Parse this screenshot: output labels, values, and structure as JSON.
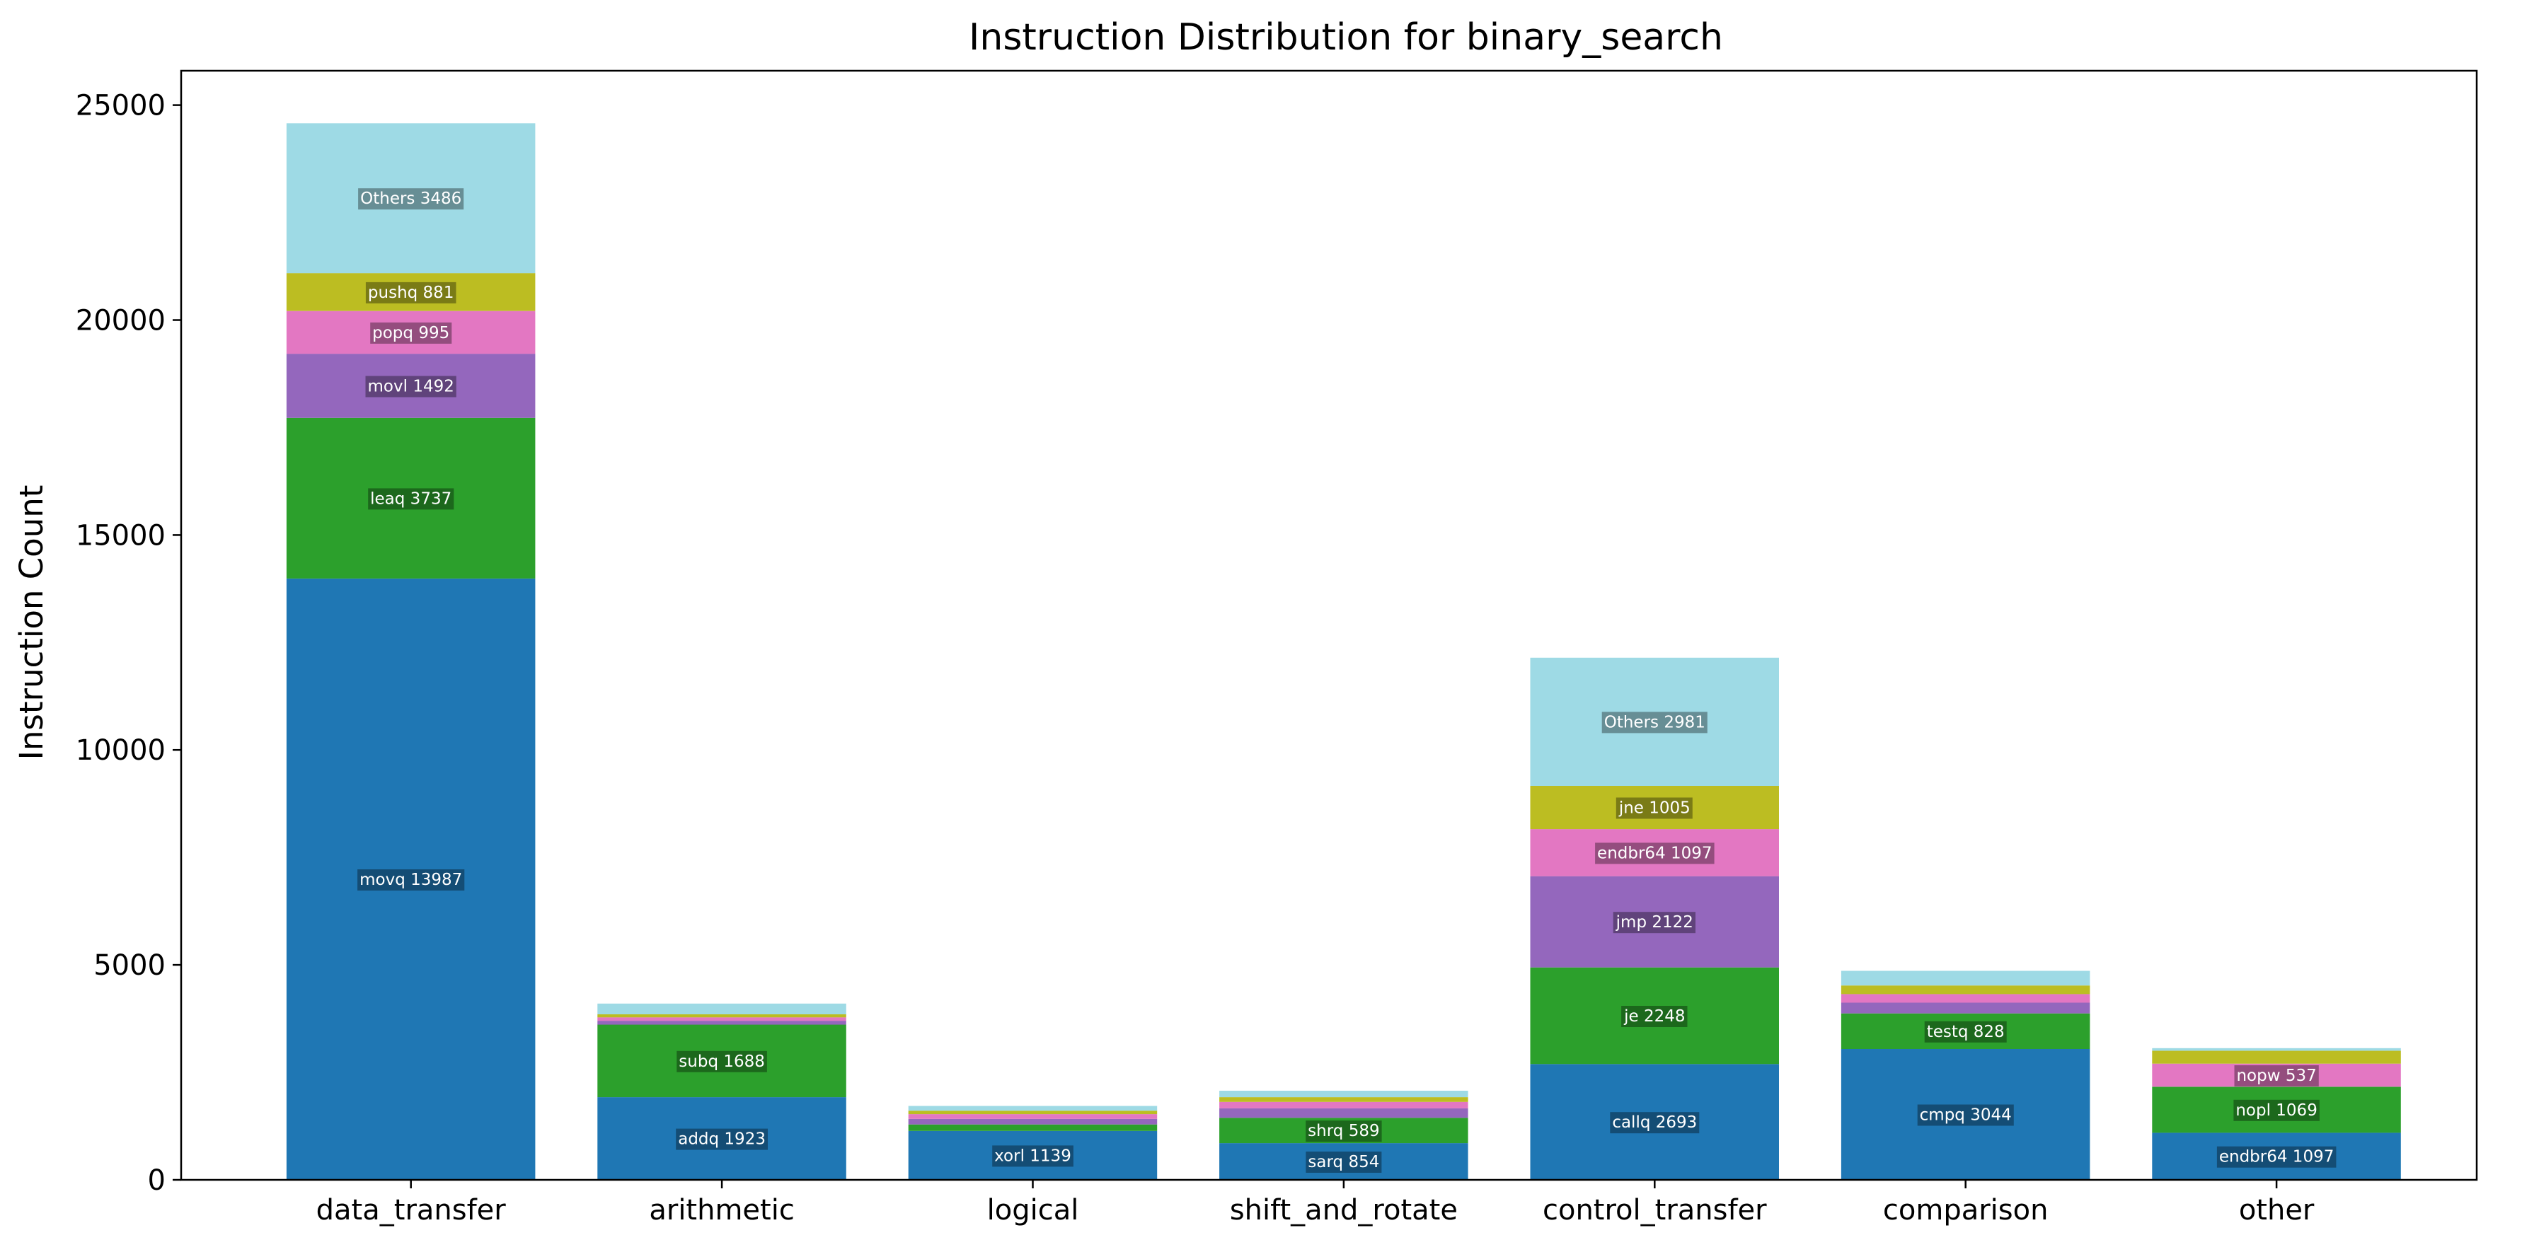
{
  "chart_data": {
    "type": "bar",
    "stacked": true,
    "title": "Instruction Distribution for binary_search",
    "xlabel": "",
    "ylabel": "Instruction Count",
    "ylim": [
      0,
      25800
    ],
    "yticks": [
      0,
      5000,
      10000,
      15000,
      20000,
      25000
    ],
    "grid": false,
    "legend": "none",
    "categories": [
      "data_transfer",
      "arithmetic",
      "logical",
      "shift_and_rotate",
      "control_transfer",
      "comparison",
      "other"
    ],
    "palette": [
      "#1f77b4",
      "#2ca02c",
      "#9467bd",
      "#e377c2",
      "#bcbd22",
      "#9edae5"
    ],
    "stacks": [
      {
        "category": "data_transfer",
        "segments": [
          {
            "label": "movq 13987",
            "value": 13987
          },
          {
            "label": "leaq 3737",
            "value": 3737
          },
          {
            "label": "movl 1492",
            "value": 1492
          },
          {
            "label": "popq 995",
            "value": 995
          },
          {
            "label": "pushq 881",
            "value": 881
          },
          {
            "label": "Others 3486",
            "value": 3486
          }
        ]
      },
      {
        "category": "arithmetic",
        "segments": [
          {
            "label": "addq 1923",
            "value": 1923
          },
          {
            "label": "subq 1688",
            "value": 1688
          },
          {
            "label": "",
            "value": 90
          },
          {
            "label": "",
            "value": 80
          },
          {
            "label": "",
            "value": 70
          },
          {
            "label": "",
            "value": 250
          }
        ]
      },
      {
        "category": "logical",
        "segments": [
          {
            "label": "xorl 1139",
            "value": 1139
          },
          {
            "label": "",
            "value": 150
          },
          {
            "label": "",
            "value": 130
          },
          {
            "label": "",
            "value": 110
          },
          {
            "label": "",
            "value": 80
          },
          {
            "label": "",
            "value": 110
          }
        ]
      },
      {
        "category": "shift_and_rotate",
        "segments": [
          {
            "label": "sarq 854",
            "value": 854
          },
          {
            "label": "shrq 589",
            "value": 589
          },
          {
            "label": "",
            "value": 220
          },
          {
            "label": "",
            "value": 150
          },
          {
            "label": "",
            "value": 110
          },
          {
            "label": "",
            "value": 150
          }
        ]
      },
      {
        "category": "control_transfer",
        "segments": [
          {
            "label": "callq 2693",
            "value": 2693
          },
          {
            "label": "je 2248",
            "value": 2248
          },
          {
            "label": "jmp 2122",
            "value": 2122
          },
          {
            "label": "endbr64 1097",
            "value": 1097
          },
          {
            "label": "jne 1005",
            "value": 1005
          },
          {
            "label": "Others 2981",
            "value": 2981
          }
        ]
      },
      {
        "category": "comparison",
        "segments": [
          {
            "label": "cmpq 3044",
            "value": 3044
          },
          {
            "label": "testq 828",
            "value": 828
          },
          {
            "label": "",
            "value": 250
          },
          {
            "label": "",
            "value": 200
          },
          {
            "label": "",
            "value": 200
          },
          {
            "label": "",
            "value": 340
          }
        ]
      },
      {
        "category": "other",
        "segments": [
          {
            "label": "endbr64 1097",
            "value": 1097
          },
          {
            "label": "nopl 1069",
            "value": 1069
          },
          {
            "label": "",
            "value": 0
          },
          {
            "label": "nopw 537",
            "value": 537
          },
          {
            "label": "",
            "value": 300
          },
          {
            "label": "",
            "value": 60
          }
        ]
      }
    ]
  }
}
